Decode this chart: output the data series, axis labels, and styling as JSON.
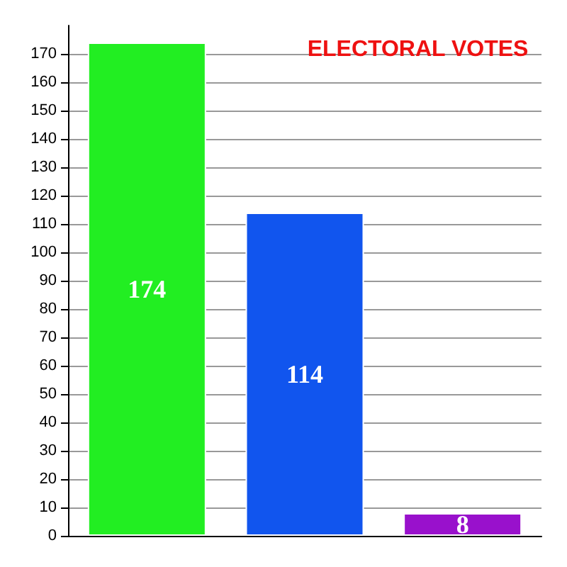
{
  "chart_data": {
    "type": "bar",
    "title": "ELECTORAL VOTES",
    "categories": [
      null,
      null,
      null
    ],
    "values": [
      174,
      114,
      8
    ],
    "colors": [
      "#22ee22",
      "#1155ee",
      "#9911cc"
    ],
    "ylim": [
      0,
      180
    ],
    "yticks": [
      0,
      10,
      20,
      30,
      40,
      50,
      60,
      70,
      80,
      90,
      100,
      110,
      120,
      130,
      140,
      150,
      160,
      170
    ],
    "grid": "y",
    "data_labels": true
  }
}
